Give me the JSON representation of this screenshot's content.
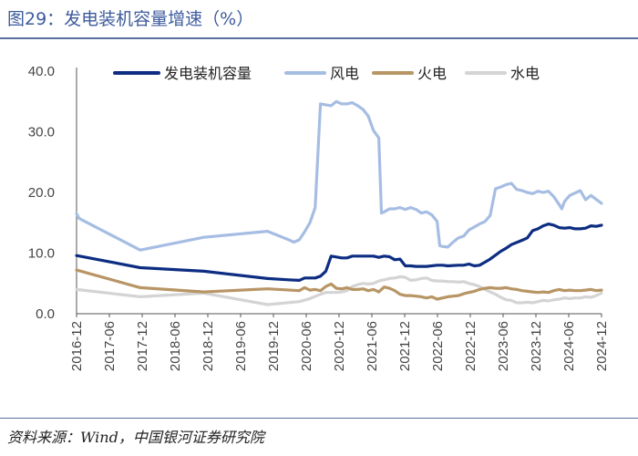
{
  "title": "图29：发电装机容量增速（%）",
  "source": "资料来源：Wind，中国银河证券研究院",
  "chart_data": {
    "type": "line",
    "title": "图29：发电装机容量增速（%）",
    "xlabel": "",
    "ylabel": "",
    "ylim": [
      0,
      40
    ],
    "yticks": [
      "40.0",
      "30.0",
      "20.0",
      "10.0",
      "0.0"
    ],
    "x_range": [
      "2016-12",
      "2024-12"
    ],
    "xtick_labels": [
      "2016-12",
      "2017-06",
      "2017-12",
      "2018-06",
      "2018-12",
      "2019-06",
      "2019-12",
      "2020-06",
      "2020-12",
      "2021-06",
      "2021-12",
      "2022-06",
      "2022-12",
      "2023-06",
      "2023-12",
      "2024-06",
      "2024-12"
    ],
    "legend_position": "top",
    "series": [
      {
        "name": "发电装机容量",
        "color": "#0d2d82",
        "width": 3.2,
        "points": [
          [
            0,
            9.6
          ],
          [
            6,
            8.6
          ],
          [
            12,
            7.6
          ],
          [
            24,
            7.0
          ],
          [
            36,
            5.8
          ],
          [
            40,
            5.6
          ],
          [
            42,
            5.5
          ],
          [
            43,
            5.9
          ],
          [
            45,
            5.9
          ],
          [
            46,
            6.2
          ],
          [
            47,
            7.0
          ],
          [
            48,
            9.5
          ],
          [
            50,
            9.2
          ],
          [
            51,
            9.2
          ],
          [
            52,
            9.5
          ],
          [
            54,
            9.5
          ],
          [
            56,
            9.5
          ],
          [
            57,
            9.3
          ],
          [
            58,
            9.5
          ],
          [
            59,
            9.4
          ],
          [
            60,
            8.9
          ],
          [
            61,
            9.0
          ],
          [
            62,
            7.9
          ],
          [
            63,
            7.9
          ],
          [
            64,
            7.8
          ],
          [
            66,
            7.8
          ],
          [
            68,
            8.0
          ],
          [
            69,
            8.0
          ],
          [
            70,
            7.9
          ],
          [
            72,
            8.0
          ],
          [
            73,
            8.0
          ],
          [
            74,
            8.2
          ],
          [
            75,
            7.9
          ],
          [
            76,
            8.0
          ],
          [
            77,
            8.5
          ],
          [
            78,
            9.0
          ],
          [
            80,
            10.3
          ],
          [
            81,
            10.8
          ],
          [
            82,
            11.4
          ],
          [
            84,
            12.1
          ],
          [
            85,
            12.5
          ],
          [
            86,
            13.7
          ],
          [
            87,
            14.0
          ],
          [
            88,
            14.5
          ],
          [
            89,
            14.8
          ],
          [
            90,
            14.6
          ],
          [
            91,
            14.2
          ],
          [
            92,
            14.1
          ],
          [
            93,
            14.2
          ],
          [
            94,
            14.0
          ],
          [
            95,
            14.0
          ],
          [
            96,
            14.1
          ],
          [
            97,
            14.5
          ],
          [
            98,
            14.4
          ],
          [
            99,
            14.6
          ]
        ]
      },
      {
        "name": "风电",
        "color": "#a6bde3",
        "width": 3.2,
        "points": [
          [
            0,
            16.5
          ],
          [
            0.5,
            15.7
          ],
          [
            12,
            10.5
          ],
          [
            24,
            12.6
          ],
          [
            36,
            13.6
          ],
          [
            40,
            12.2
          ],
          [
            41,
            11.8
          ],
          [
            42,
            12.2
          ],
          [
            43,
            13.5
          ],
          [
            44,
            15.0
          ],
          [
            45,
            17.5
          ],
          [
            46,
            34.6
          ],
          [
            48,
            34.3
          ],
          [
            49,
            35.0
          ],
          [
            50,
            34.6
          ],
          [
            51,
            34.6
          ],
          [
            52,
            34.8
          ],
          [
            53,
            34.3
          ],
          [
            54,
            33.7
          ],
          [
            55,
            32.6
          ],
          [
            56,
            30.2
          ],
          [
            57,
            29.0
          ],
          [
            57.5,
            16.6
          ],
          [
            58,
            16.8
          ],
          [
            59,
            17.3
          ],
          [
            60,
            17.3
          ],
          [
            61,
            17.5
          ],
          [
            62,
            17.2
          ],
          [
            63,
            17.5
          ],
          [
            64,
            17.2
          ],
          [
            65,
            16.6
          ],
          [
            66,
            16.8
          ],
          [
            67,
            16.3
          ],
          [
            68,
            15.2
          ],
          [
            68.5,
            11.2
          ],
          [
            69,
            11.1
          ],
          [
            70,
            11.0
          ],
          [
            71,
            11.8
          ],
          [
            72,
            12.5
          ],
          [
            73,
            12.8
          ],
          [
            74,
            13.8
          ],
          [
            75,
            14.3
          ],
          [
            76,
            14.8
          ],
          [
            77,
            15.2
          ],
          [
            78,
            16.2
          ],
          [
            79,
            20.6
          ],
          [
            80,
            20.9
          ],
          [
            81,
            21.3
          ],
          [
            82,
            21.5
          ],
          [
            83,
            20.5
          ],
          [
            84,
            20.3
          ],
          [
            85,
            20.0
          ],
          [
            86,
            19.8
          ],
          [
            87,
            20.2
          ],
          [
            88,
            20.0
          ],
          [
            89,
            20.2
          ],
          [
            90,
            19.3
          ],
          [
            91,
            18.0
          ],
          [
            91.5,
            17.3
          ],
          [
            92,
            18.5
          ],
          [
            93,
            19.5
          ],
          [
            95,
            20.3
          ],
          [
            96,
            18.8
          ],
          [
            97,
            19.5
          ],
          [
            99,
            18.2
          ]
        ]
      },
      {
        "name": "火电",
        "color": "#b89565",
        "width": 3.2,
        "points": [
          [
            0,
            7.2
          ],
          [
            12,
            4.3
          ],
          [
            24,
            3.6
          ],
          [
            36,
            4.1
          ],
          [
            42,
            3.8
          ],
          [
            43,
            4.3
          ],
          [
            44,
            3.9
          ],
          [
            45,
            4.0
          ],
          [
            46,
            3.8
          ],
          [
            47,
            4.5
          ],
          [
            48,
            4.9
          ],
          [
            49,
            4.2
          ],
          [
            50,
            4.1
          ],
          [
            51,
            4.3
          ],
          [
            52,
            4.0
          ],
          [
            53,
            4.0
          ],
          [
            54,
            4.1
          ],
          [
            55,
            3.8
          ],
          [
            56,
            4.0
          ],
          [
            57,
            3.6
          ],
          [
            58,
            4.4
          ],
          [
            59,
            4.2
          ],
          [
            60,
            3.8
          ],
          [
            61,
            3.2
          ],
          [
            62,
            3.0
          ],
          [
            63,
            3.0
          ],
          [
            64,
            2.9
          ],
          [
            65,
            2.8
          ],
          [
            66,
            2.6
          ],
          [
            67,
            2.8
          ],
          [
            68,
            2.4
          ],
          [
            69,
            2.6
          ],
          [
            70,
            2.8
          ],
          [
            71,
            2.9
          ],
          [
            72,
            3.0
          ],
          [
            73,
            3.3
          ],
          [
            74,
            3.5
          ],
          [
            75,
            3.7
          ],
          [
            76,
            4.0
          ],
          [
            77,
            4.2
          ],
          [
            78,
            4.3
          ],
          [
            79,
            4.2
          ],
          [
            80,
            4.2
          ],
          [
            81,
            4.3
          ],
          [
            82,
            4.1
          ],
          [
            83,
            4.0
          ],
          [
            84,
            3.8
          ],
          [
            85,
            3.7
          ],
          [
            86,
            3.6
          ],
          [
            87,
            3.5
          ],
          [
            88,
            3.6
          ],
          [
            89,
            3.5
          ],
          [
            90,
            3.8
          ],
          [
            91,
            4.0
          ],
          [
            92,
            3.8
          ],
          [
            93,
            3.9
          ],
          [
            94,
            3.8
          ],
          [
            95,
            3.8
          ],
          [
            96,
            3.9
          ],
          [
            97,
            4.0
          ],
          [
            98,
            3.8
          ],
          [
            99,
            3.9
          ]
        ]
      },
      {
        "name": "水电",
        "color": "#d4d4d4",
        "width": 3.2,
        "points": [
          [
            0,
            4.0
          ],
          [
            6,
            3.4
          ],
          [
            12,
            2.8
          ],
          [
            24,
            3.4
          ],
          [
            36,
            1.5
          ],
          [
            42,
            2.0
          ],
          [
            44,
            2.5
          ],
          [
            46,
            3.2
          ],
          [
            47,
            3.5
          ],
          [
            48,
            3.5
          ],
          [
            49,
            3.5
          ],
          [
            50,
            3.6
          ],
          [
            51,
            3.8
          ],
          [
            52,
            4.5
          ],
          [
            53,
            4.8
          ],
          [
            54,
            5.0
          ],
          [
            55,
            4.9
          ],
          [
            56,
            5.0
          ],
          [
            57,
            5.4
          ],
          [
            58,
            5.6
          ],
          [
            59,
            5.8
          ],
          [
            60,
            5.9
          ],
          [
            61,
            6.1
          ],
          [
            62,
            6.0
          ],
          [
            63,
            5.5
          ],
          [
            64,
            5.6
          ],
          [
            65,
            5.8
          ],
          [
            66,
            5.9
          ],
          [
            67,
            5.5
          ],
          [
            68,
            5.4
          ],
          [
            69,
            5.4
          ],
          [
            70,
            5.3
          ],
          [
            71,
            5.3
          ],
          [
            72,
            5.2
          ],
          [
            73,
            5.3
          ],
          [
            74,
            5.0
          ],
          [
            75,
            4.8
          ],
          [
            76,
            4.5
          ],
          [
            77,
            4.0
          ],
          [
            78,
            3.6
          ],
          [
            79,
            3.2
          ],
          [
            80,
            2.7
          ],
          [
            81,
            2.3
          ],
          [
            82,
            2.2
          ],
          [
            83,
            1.8
          ],
          [
            84,
            1.8
          ],
          [
            85,
            1.9
          ],
          [
            86,
            1.8
          ],
          [
            87,
            2.0
          ],
          [
            88,
            2.2
          ],
          [
            89,
            2.1
          ],
          [
            90,
            2.3
          ],
          [
            91,
            2.4
          ],
          [
            92,
            2.6
          ],
          [
            93,
            2.5
          ],
          [
            94,
            2.6
          ],
          [
            95,
            2.6
          ],
          [
            96,
            2.8
          ],
          [
            97,
            2.7
          ],
          [
            98,
            3.0
          ],
          [
            99,
            3.4
          ]
        ]
      }
    ]
  }
}
